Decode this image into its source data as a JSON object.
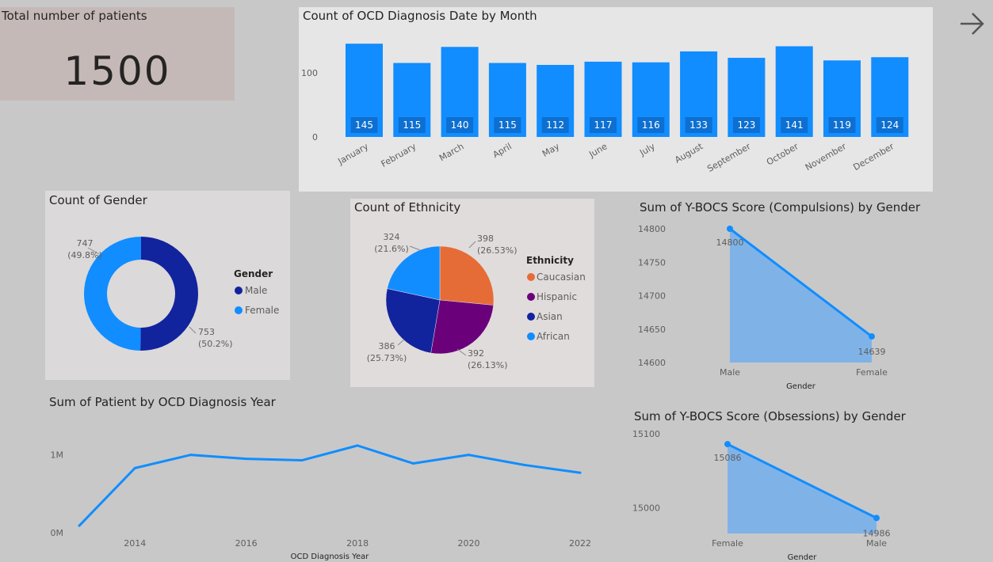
{
  "kpi": {
    "title": "Total number of patients",
    "value": "1500"
  },
  "nav": {
    "icon": "arrow-right-icon"
  },
  "colors": {
    "bar": "#118dff",
    "male": "#12239e",
    "female": "#118dff",
    "caucasian": "#e66c37",
    "hispanic": "#6b007b",
    "asian": "#12239e",
    "african": "#118dff",
    "area_fill": "#7fb3e8",
    "line": "#118dff"
  },
  "chart_data": [
    {
      "id": "monthly",
      "type": "bar",
      "title": "Count of OCD Diagnosis Date by Month",
      "categories": [
        "January",
        "February",
        "March",
        "April",
        "May",
        "June",
        "July",
        "August",
        "September",
        "October",
        "November",
        "December"
      ],
      "values": [
        145,
        115,
        140,
        115,
        112,
        117,
        116,
        133,
        123,
        141,
        119,
        124
      ],
      "yticks": [
        "0",
        "100"
      ],
      "ylim": [
        0,
        160
      ]
    },
    {
      "id": "gender",
      "type": "pie",
      "variant": "donut",
      "title": "Count of Gender",
      "legend_title": "Gender",
      "slices": [
        {
          "name": "Male",
          "value": 753,
          "label_count": "753",
          "label_pct": "(50.2%)"
        },
        {
          "name": "Female",
          "value": 747,
          "label_count": "747",
          "label_pct": "(49.8%)"
        }
      ]
    },
    {
      "id": "ethnicity",
      "type": "pie",
      "title": "Count of Ethnicity",
      "legend_title": "Ethnicity",
      "slices": [
        {
          "name": "Caucasian",
          "value": 398,
          "label_count": "398",
          "label_pct": "(26.53%)"
        },
        {
          "name": "Hispanic",
          "value": 392,
          "label_count": "392",
          "label_pct": "(26.13%)"
        },
        {
          "name": "Asian",
          "value": 386,
          "label_count": "386",
          "label_pct": "(25.73%)"
        },
        {
          "name": "African",
          "value": 324,
          "label_count": "324",
          "label_pct": "(21.6%)"
        }
      ]
    },
    {
      "id": "compulsions",
      "type": "area",
      "title": "Sum of Y-BOCS Score (Compulsions) by Gender",
      "xlabel": "Gender",
      "categories": [
        "Male",
        "Female"
      ],
      "values": [
        14800,
        14639
      ],
      "data_labels": [
        "14800",
        "14639"
      ],
      "yticks": [
        "14800",
        "14750",
        "14700",
        "14650",
        "14600"
      ],
      "ylim": [
        14600,
        14800
      ]
    },
    {
      "id": "obsessions",
      "type": "area",
      "title": "Sum of Y-BOCS Score (Obsessions) by Gender",
      "xlabel": "Gender",
      "categories": [
        "Female",
        "Male"
      ],
      "values": [
        15086,
        14986
      ],
      "data_labels": [
        "15086",
        "14986"
      ],
      "yticks": [
        "15100",
        "15000"
      ],
      "ylim": [
        14950,
        15100
      ]
    },
    {
      "id": "yearly",
      "type": "line",
      "title": "Sum of Patient by OCD Diagnosis Year",
      "xlabel": "OCD Diagnosis Year",
      "x": [
        2013,
        2014,
        2015,
        2016,
        2017,
        2018,
        2019,
        2020,
        2021,
        2022
      ],
      "y": [
        90000,
        830000,
        1000000,
        950000,
        930000,
        1120000,
        890000,
        1000000,
        870000,
        770000
      ],
      "xticks": [
        "2014",
        "2016",
        "2018",
        "2020",
        "2022"
      ],
      "yticks": [
        "0M",
        "1M"
      ],
      "ylim": [
        0,
        1200000
      ]
    }
  ]
}
